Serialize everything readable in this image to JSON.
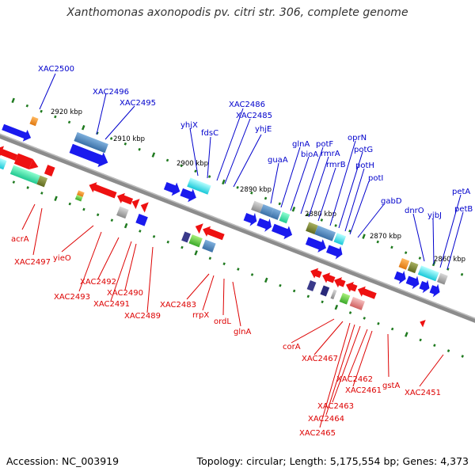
{
  "title": "Xanthomonas axonopodis pv. citri str. 306, complete genome",
  "footer": {
    "accession": "Accession: NC_003919",
    "summary": "Topology: circular; Length: 5,175,554 bp; Genes: 4,373"
  },
  "colors": {
    "forward_label": "#0000cc",
    "reverse_label": "#dd0000",
    "backbone": "#8c8c8c",
    "tick": "#1f7a1f",
    "forward_arrow": "#1a1aee",
    "reverse_arrow": "#ee1111"
  },
  "scale_labels": [
    "2920 kbp",
    "2910 kbp",
    "2900 kbp",
    "2890 kbp",
    "2880 kbp",
    "2870 kbp",
    "2860 kbp"
  ],
  "forward_genes": [
    "XAC2500",
    "XAC2496",
    "XAC2495",
    "yhjX",
    "fdsC",
    "XAC2486",
    "XAC2485",
    "yhjE",
    "guaA",
    "glnA",
    "bioA",
    "potF",
    "rmrA",
    "rmrB",
    "oprN",
    "potG",
    "potH",
    "potI",
    "gabD",
    "dnrO",
    "yjbJ",
    "petA",
    "petB"
  ],
  "reverse_genes": [
    "acrA",
    "XAC2497",
    "yieO",
    "XAC2492",
    "XAC2493",
    "XAC2490",
    "XAC2491",
    "XAC2489",
    "XAC2483",
    "rrpX",
    "ordL",
    "glnA",
    "corA",
    "XAC2467",
    "XAC2462",
    "XAC2461",
    "XAC2463",
    "XAC2464",
    "XAC2465",
    "gstA",
    "XAC2451"
  ]
}
